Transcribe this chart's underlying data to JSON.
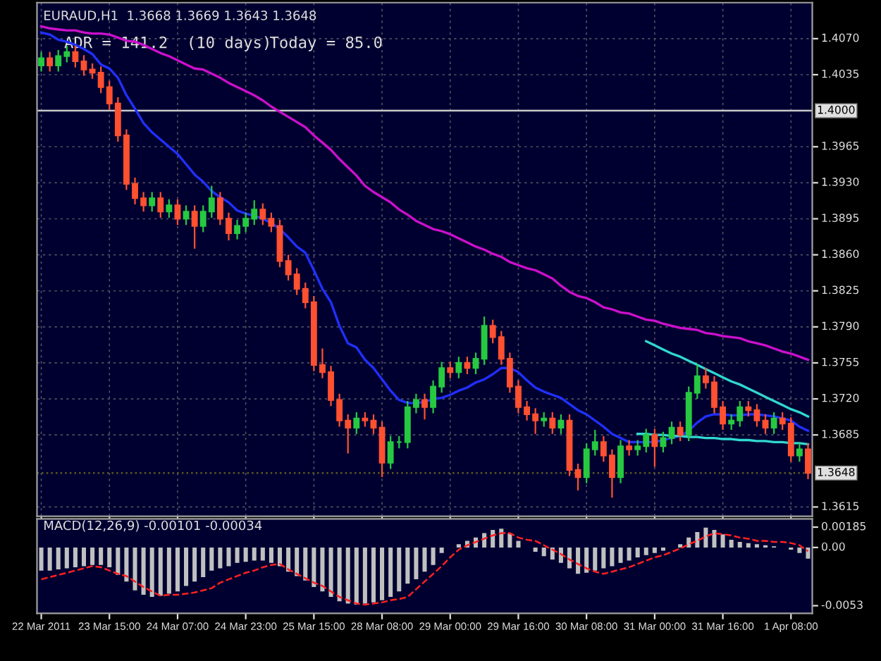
{
  "chart_data": [
    {
      "type": "candlestick",
      "title": "EURAUD,H1  1.3668 1.3669 1.3643 1.3648",
      "annotations": [
        "ADR = 141.2  (10 days)",
        "Today = 85.0"
      ],
      "categories": [
        null,
        null,
        null,
        null,
        null,
        null,
        null,
        null,
        null,
        null,
        null,
        null,
        null,
        null,
        null,
        null,
        null,
        null,
        null,
        null,
        null,
        null,
        null,
        null,
        null,
        null,
        null,
        null,
        null,
        null,
        null,
        null,
        null,
        null,
        null,
        null,
        null,
        null,
        null,
        null,
        null,
        null,
        null,
        null,
        null,
        null,
        null,
        null,
        null,
        null,
        null,
        null,
        null,
        null,
        null,
        null,
        null,
        null,
        null,
        null,
        null,
        null,
        null,
        null,
        null,
        null,
        null,
        null,
        null,
        null,
        null,
        null,
        null,
        null,
        null,
        null,
        null,
        null,
        null,
        null,
        null,
        null,
        null,
        null,
        null,
        null,
        null,
        null,
        null,
        null,
        null
      ],
      "ohlc": [
        [
          1.4044,
          1.4057,
          1.4038,
          1.4051
        ],
        [
          1.4051,
          1.4057,
          1.4038,
          1.4044
        ],
        [
          1.4044,
          1.4059,
          1.4038,
          1.4053
        ],
        [
          1.4053,
          1.4063,
          1.4047,
          1.4057
        ],
        [
          1.4057,
          1.4063,
          1.4042,
          1.4048
        ],
        [
          1.4048,
          1.4054,
          1.4034,
          1.404
        ],
        [
          1.404,
          1.4046,
          1.4031,
          1.4037
        ],
        [
          1.4037,
          1.4043,
          1.4017,
          1.4023
        ],
        [
          1.4023,
          1.4029,
          1.4001,
          1.4007
        ],
        [
          1.4007,
          1.4013,
          1.397,
          1.3976
        ],
        [
          1.3976,
          1.3982,
          1.3923,
          1.3929
        ],
        [
          1.3929,
          1.3935,
          1.3909,
          1.3915
        ],
        [
          1.3915,
          1.3921,
          1.3902,
          1.3908
        ],
        [
          1.3908,
          1.3921,
          1.3902,
          1.3915
        ],
        [
          1.3915,
          1.3921,
          1.3896,
          1.3902
        ],
        [
          1.3902,
          1.3914,
          1.3896,
          1.3908
        ],
        [
          1.3908,
          1.3914,
          1.3889,
          1.3895
        ],
        [
          1.3895,
          1.3908,
          1.3889,
          1.3902
        ],
        [
          1.3902,
          1.3908,
          1.3866,
          1.3888
        ],
        [
          1.3888,
          1.3908,
          1.3882,
          1.3902
        ],
        [
          1.3902,
          1.3927,
          1.3896,
          1.3915
        ],
        [
          1.3915,
          1.3921,
          1.3889,
          1.3895
        ],
        [
          1.3895,
          1.3901,
          1.3874,
          1.3881
        ],
        [
          1.3881,
          1.3894,
          1.3875,
          1.3888
        ],
        [
          1.3888,
          1.3901,
          1.3882,
          1.3895
        ],
        [
          1.3895,
          1.3913,
          1.3889,
          1.3904
        ],
        [
          1.3904,
          1.391,
          1.3889,
          1.3895
        ],
        [
          1.3895,
          1.3901,
          1.3882,
          1.3888
        ],
        [
          1.3888,
          1.3894,
          1.3848,
          1.3854
        ],
        [
          1.3854,
          1.386,
          1.3835,
          1.3841
        ],
        [
          1.3841,
          1.3847,
          1.3821,
          1.3827
        ],
        [
          1.3827,
          1.3833,
          1.3808,
          1.3814
        ],
        [
          1.3814,
          1.382,
          1.3747,
          1.3753
        ],
        [
          1.3753,
          1.3769,
          1.374,
          1.3746
        ],
        [
          1.3746,
          1.3752,
          1.3713,
          1.3719
        ],
        [
          1.3719,
          1.3725,
          1.3693,
          1.3699
        ],
        [
          1.3699,
          1.3705,
          1.3667,
          1.3692
        ],
        [
          1.3692,
          1.3707,
          1.3686,
          1.3701
        ],
        [
          1.3701,
          1.3707,
          1.3693,
          1.3699
        ],
        [
          1.3699,
          1.3705,
          1.3686,
          1.3692
        ],
        [
          1.3692,
          1.3698,
          1.3644,
          1.3658
        ],
        [
          1.3658,
          1.3684,
          1.3652,
          1.3678
        ],
        [
          1.3678,
          1.3684,
          1.3672,
          1.3678
        ],
        [
          1.3678,
          1.3718,
          1.3672,
          1.3712
        ],
        [
          1.3712,
          1.3725,
          1.3706,
          1.3719
        ],
        [
          1.3719,
          1.3725,
          1.37,
          1.3712
        ],
        [
          1.3712,
          1.3738,
          1.3706,
          1.3732
        ],
        [
          1.3732,
          1.3756,
          1.3726,
          1.375
        ],
        [
          1.375,
          1.3756,
          1.374,
          1.3746
        ],
        [
          1.3746,
          1.3761,
          1.374,
          1.3755
        ],
        [
          1.3755,
          1.3761,
          1.3744,
          1.375
        ],
        [
          1.375,
          1.3765,
          1.3744,
          1.3759
        ],
        [
          1.3759,
          1.38,
          1.3753,
          1.3791
        ],
        [
          1.3791,
          1.3797,
          1.3774,
          1.378
        ],
        [
          1.378,
          1.3786,
          1.3753,
          1.3759
        ],
        [
          1.3759,
          1.3765,
          1.3726,
          1.3732
        ],
        [
          1.3732,
          1.3738,
          1.3706,
          1.3712
        ],
        [
          1.3712,
          1.3718,
          1.3699,
          1.3705
        ],
        [
          1.3705,
          1.3711,
          1.3686,
          1.3699
        ],
        [
          1.3699,
          1.3707,
          1.3693,
          1.3701
        ],
        [
          1.3701,
          1.3707,
          1.3686,
          1.3692
        ],
        [
          1.3692,
          1.3705,
          1.3686,
          1.3699
        ],
        [
          1.3699,
          1.3705,
          1.3645,
          1.3651
        ],
        [
          1.3651,
          1.3657,
          1.3631,
          1.3644
        ],
        [
          1.3644,
          1.3677,
          1.3638,
          1.3671
        ],
        [
          1.3671,
          1.369,
          1.3665,
          1.3678
        ],
        [
          1.3678,
          1.3684,
          1.3659,
          1.3665
        ],
        [
          1.3665,
          1.3671,
          1.3624,
          1.3644
        ],
        [
          1.3644,
          1.368,
          1.3638,
          1.3674
        ],
        [
          1.3674,
          1.368,
          1.3665,
          1.3671
        ],
        [
          1.3671,
          1.368,
          1.3665,
          1.3674
        ],
        [
          1.3674,
          1.3691,
          1.3668,
          1.3685
        ],
        [
          1.3685,
          1.3691,
          1.3654,
          1.3674
        ],
        [
          1.3674,
          1.3688,
          1.3668,
          1.3682
        ],
        [
          1.3682,
          1.3698,
          1.3676,
          1.3692
        ],
        [
          1.3692,
          1.3698,
          1.3679,
          1.3685
        ],
        [
          1.3685,
          1.3732,
          1.3679,
          1.3726
        ],
        [
          1.3726,
          1.3753,
          1.372,
          1.3742
        ],
        [
          1.3742,
          1.375,
          1.373,
          1.3736
        ],
        [
          1.3736,
          1.3742,
          1.3706,
          1.3712
        ],
        [
          1.3712,
          1.3718,
          1.369,
          1.3696
        ],
        [
          1.3696,
          1.3705,
          1.369,
          1.3699
        ],
        [
          1.3699,
          1.3718,
          1.3693,
          1.3712
        ],
        [
          1.3712,
          1.3718,
          1.3703,
          1.3709
        ],
        [
          1.3709,
          1.3715,
          1.3693,
          1.3699
        ],
        [
          1.3699,
          1.3705,
          1.3686,
          1.3692
        ],
        [
          1.3692,
          1.3707,
          1.3686,
          1.3701
        ],
        [
          1.3701,
          1.3707,
          1.369,
          1.3696
        ],
        [
          1.3696,
          1.3702,
          1.3659,
          1.3665
        ],
        [
          1.3665,
          1.3677,
          1.3659,
          1.3671
        ],
        [
          1.3671,
          1.3677,
          1.3642,
          1.3648
        ]
      ],
      "colors": [
        "#26c940",
        "#ff5030",
        "#26c940",
        "#26c940",
        "#ff5030",
        "#ff5030",
        "#ff5030",
        "#ff5030",
        "#ff5030",
        "#ff5030",
        "#ff5030",
        "#ff5030",
        "#ff5030",
        "#26c940",
        "#ff5030",
        "#26c940",
        "#ff5030",
        "#26c940",
        "#ff5030",
        "#26c940",
        "#26c940",
        "#ff5030",
        "#ff5030",
        "#26c940",
        "#26c940",
        "#26c940",
        "#ff5030",
        "#ff5030",
        "#ff5030",
        "#ff5030",
        "#ff5030",
        "#ff5030",
        "#ff5030",
        "#ff5030",
        "#ff5030",
        "#ff5030",
        "#ff5030",
        "#26c940",
        "#ff5030",
        "#ff5030",
        "#ff5030",
        "#26c940",
        "#26c940",
        "#26c940",
        "#26c940",
        "#ff5030",
        "#26c940",
        "#26c940",
        "#ff5030",
        "#26c940",
        "#ff5030",
        "#26c940",
        "#26c940",
        "#ff5030",
        "#ff5030",
        "#ff5030",
        "#ff5030",
        "#ff5030",
        "#ff5030",
        "#26c940",
        "#ff5030",
        "#26c940",
        "#ff5030",
        "#ff5030",
        "#26c940",
        "#26c940",
        "#ff5030",
        "#ff5030",
        "#26c940",
        "#ff5030",
        "#26c940",
        "#26c940",
        "#ff5030",
        "#26c940",
        "#26c940",
        "#ff5030",
        "#26c940",
        "#26c940",
        "#ff5030",
        "#ff5030",
        "#ff5030",
        "#26c940",
        "#26c940",
        "#ff5030",
        "#ff5030",
        "#ff5030",
        "#26c940",
        "#ff5030",
        "#ff5030",
        "#26c940",
        "#ff5030"
      ],
      "series": [
        {
          "type": "line",
          "color": "#2030ff",
          "values": [
            1.4076,
            1.4074,
            1.4069,
            1.4067,
            1.4064,
            1.406,
            1.4055,
            1.4045,
            1.4041,
            1.4032,
            1.4015,
            1.4002,
            1.3988,
            1.3979,
            1.3972,
            1.3965,
            1.3958,
            1.3948,
            1.3938,
            1.3931,
            1.3922,
            1.3916,
            1.3911,
            1.3903,
            1.39,
            1.3898,
            1.3895,
            1.3891,
            1.3885,
            1.3877,
            1.3868,
            1.3862,
            1.3845,
            1.3827,
            1.3814,
            1.3791,
            1.3774,
            1.377,
            1.3758,
            1.375,
            1.3739,
            1.3728,
            1.3719,
            1.3716,
            1.3716,
            1.3717,
            1.372,
            1.3721,
            1.3724,
            1.3728,
            1.3731,
            1.3736,
            1.3739,
            1.3744,
            1.375,
            1.375,
            1.3746,
            1.3738,
            1.3731,
            1.3727,
            1.3724,
            1.3721,
            1.3715,
            1.3709,
            1.3705,
            1.3699,
            1.3693,
            1.3686,
            1.3682,
            1.3678,
            1.3678,
            1.3678,
            1.3678,
            1.368,
            1.3682,
            1.3684,
            1.3689,
            1.3697,
            1.3703,
            1.3705,
            1.3705,
            1.3704,
            1.3704,
            1.3705,
            1.3705,
            1.3704,
            1.3703,
            1.3701,
            1.3699,
            1.3693,
            1.3689
          ]
        },
        {
          "type": "line",
          "color": "#cc10cc",
          "values": [
            1.4082,
            1.408,
            1.4079,
            1.4078,
            1.4078,
            1.4076,
            1.4075,
            1.4075,
            1.4074,
            1.4071,
            1.4068,
            1.4067,
            1.4064,
            1.406,
            1.4056,
            1.4053,
            1.4049,
            1.4045,
            1.4041,
            1.404,
            1.4036,
            1.4032,
            1.4027,
            1.4023,
            1.4019,
            1.4015,
            1.401,
            1.4004,
            1.3999,
            1.3994,
            1.3989,
            1.3984,
            1.3976,
            1.3969,
            1.3962,
            1.3953,
            1.3945,
            1.3937,
            1.3927,
            1.3921,
            1.3916,
            1.3911,
            1.3904,
            1.3899,
            1.3893,
            1.3889,
            1.3885,
            1.3883,
            1.388,
            1.3876,
            1.3872,
            1.3868,
            1.3865,
            1.3861,
            1.3858,
            1.3853,
            1.385,
            1.3847,
            1.3845,
            1.3841,
            1.3837,
            1.383,
            1.3824,
            1.382,
            1.3818,
            1.3814,
            1.3809,
            1.3807,
            1.3804,
            1.3803,
            1.38,
            1.3797,
            1.3796,
            1.3793,
            1.3791,
            1.3789,
            1.3788,
            1.3787,
            1.3784,
            1.3783,
            1.3781,
            1.378,
            1.3779,
            1.3776,
            1.3774,
            1.3772,
            1.3769,
            1.3766,
            1.3764,
            1.3761,
            1.3758
          ]
        },
        {
          "type": "line",
          "color": "#30d8d0",
          "values": [
            null,
            null,
            null,
            null,
            null,
            null,
            null,
            null,
            null,
            null,
            null,
            null,
            null,
            null,
            null,
            null,
            null,
            null,
            null,
            null,
            null,
            null,
            null,
            null,
            null,
            null,
            null,
            null,
            null,
            null,
            null,
            null,
            null,
            null,
            null,
            null,
            null,
            null,
            null,
            null,
            null,
            null,
            null,
            null,
            null,
            null,
            null,
            null,
            null,
            null,
            null,
            null,
            null,
            null,
            null,
            null,
            null,
            null,
            null,
            null,
            null,
            null,
            null,
            null,
            null,
            null,
            null,
            null,
            null,
            null,
            null,
            1.3776,
            1.3772,
            1.3768,
            1.3764,
            1.3761,
            1.3757,
            1.3753,
            1.3749,
            1.3745,
            1.3741,
            1.3737,
            1.3734,
            1.373,
            1.3726,
            1.3722,
            1.3718,
            1.3714,
            1.371,
            1.3707,
            1.3703
          ]
        },
        {
          "type": "line",
          "color": "#30d8d0",
          "values": [
            null,
            null,
            null,
            null,
            null,
            null,
            null,
            null,
            null,
            null,
            null,
            null,
            null,
            null,
            null,
            null,
            null,
            null,
            null,
            null,
            null,
            null,
            null,
            null,
            null,
            null,
            null,
            null,
            null,
            null,
            null,
            null,
            null,
            null,
            null,
            null,
            null,
            null,
            null,
            null,
            null,
            null,
            null,
            null,
            null,
            null,
            null,
            null,
            null,
            null,
            null,
            null,
            null,
            null,
            null,
            null,
            null,
            null,
            null,
            null,
            null,
            null,
            null,
            null,
            null,
            null,
            null,
            null,
            null,
            null,
            1.3686,
            1.3686,
            1.3685,
            1.3685,
            1.3684,
            1.3684,
            1.3683,
            1.3683,
            1.3682,
            1.3682,
            1.3681,
            1.3681,
            1.368,
            1.368,
            1.3679,
            1.3679,
            1.3678,
            1.3678,
            1.3677,
            1.3677,
            1.3676
          ]
        }
      ],
      "ylim": [
        1.3606,
        1.4105
      ],
      "yticks": [
        {
          "value": 1.407,
          "label": "1.4070"
        },
        {
          "value": 1.4035,
          "label": "1.4035"
        },
        {
          "value": 1.3965,
          "label": "1.3965"
        },
        {
          "value": 1.393,
          "label": "1.3930"
        },
        {
          "value": 1.3895,
          "label": "1.3895"
        },
        {
          "value": 1.386,
          "label": "1.3860"
        },
        {
          "value": 1.3825,
          "label": "1.3825"
        },
        {
          "value": 1.379,
          "label": "1.3790"
        },
        {
          "value": 1.3755,
          "label": "1.3755"
        },
        {
          "value": 1.372,
          "label": "1.3720"
        },
        {
          "value": 1.3685,
          "label": "1.3685"
        },
        {
          "value": 1.3615,
          "label": "1.3615"
        }
      ],
      "ref_lines": [
        {
          "axis": "y",
          "value": 1.4,
          "label": "1.4000",
          "color": "#c8c8c8",
          "line_style": "solid"
        },
        {
          "axis": "y",
          "value": 1.3648,
          "label": "1.3648",
          "color": "#5a5a20",
          "line_style": "dotted"
        }
      ],
      "grid": true
    },
    {
      "type": "bar",
      "title": "MACD(12,26,9) -0.00101 -0.00034",
      "categories": [
        "22 Mar 2011",
        null,
        null,
        null,
        null,
        null,
        null,
        null,
        "23 Mar 15:00",
        null,
        null,
        null,
        null,
        null,
        null,
        null,
        "24 Mar 07:00",
        null,
        null,
        null,
        null,
        null,
        null,
        null,
        "24 Mar 23:00",
        null,
        null,
        null,
        null,
        null,
        null,
        null,
        "25 Mar 15:00",
        null,
        null,
        null,
        null,
        null,
        null,
        null,
        "28 Mar 08:00",
        null,
        null,
        null,
        null,
        null,
        null,
        null,
        "29 Mar 00:00",
        null,
        null,
        null,
        null,
        null,
        null,
        null,
        "29 Mar 16:00",
        null,
        null,
        null,
        null,
        null,
        null,
        null,
        "30 Mar 08:00",
        null,
        null,
        null,
        null,
        null,
        null,
        null,
        "31 Mar 00:00",
        null,
        null,
        null,
        null,
        null,
        null,
        null,
        "31 Mar 16:00",
        null,
        null,
        null,
        null,
        null,
        null,
        null,
        "1 Apr 08:00",
        null,
        null
      ],
      "series": [
        {
          "type": "bar",
          "color": "#c0c0c0",
          "values": [
            -0.0021,
            -0.0021,
            -0.002,
            -0.0019,
            -0.0018,
            -0.0017,
            -0.0016,
            -0.0016,
            -0.0018,
            -0.0025,
            -0.0031,
            -0.0039,
            -0.0043,
            -0.0045,
            -0.0044,
            -0.0042,
            -0.004,
            -0.0035,
            -0.0031,
            -0.0027,
            -0.0021,
            -0.0019,
            -0.0017,
            -0.0014,
            -0.0013,
            -0.0012,
            -0.0012,
            -0.0014,
            -0.0017,
            -0.0022,
            -0.0026,
            -0.003,
            -0.0036,
            -0.004,
            -0.0045,
            -0.0049,
            -0.0051,
            -0.0052,
            -0.0051,
            -0.005,
            -0.0048,
            -0.0045,
            -0.004,
            -0.0033,
            -0.0029,
            -0.0022,
            -0.0016,
            -0.0005,
            0.0,
            0.0003,
            0.0006,
            0.0009,
            0.0013,
            0.0016,
            0.0017,
            0.0013,
            0.0006,
            0.0,
            -0.0004,
            -0.0008,
            -0.0011,
            -0.0014,
            -0.0019,
            -0.0024,
            -0.0023,
            -0.0021,
            -0.0019,
            -0.0017,
            -0.0014,
            -0.0012,
            -0.0009,
            -0.0007,
            -0.0005,
            -0.0003,
            0.0,
            0.0003,
            0.0009,
            0.0014,
            0.0018,
            0.0016,
            0.0012,
            0.0007,
            0.0005,
            0.0004,
            0.0003,
            0.0002,
            0.0001,
            0.0,
            -0.0002,
            -0.0005,
            -0.00101
          ]
        },
        {
          "type": "line",
          "color": "#ff2020",
          "line_style": "dashed",
          "values": [
            -0.0029,
            -0.0027,
            -0.0025,
            -0.0023,
            -0.0021,
            -0.0019,
            -0.0017,
            -0.0018,
            -0.0021,
            -0.0024,
            -0.0026,
            -0.0031,
            -0.0036,
            -0.004,
            -0.0044,
            -0.0043,
            -0.0043,
            -0.0042,
            -0.0041,
            -0.0039,
            -0.0037,
            -0.0032,
            -0.0029,
            -0.0026,
            -0.0023,
            -0.0021,
            -0.0018,
            -0.0016,
            -0.0015,
            -0.002,
            -0.0024,
            -0.0028,
            -0.0032,
            -0.0035,
            -0.004,
            -0.0045,
            -0.0048,
            -0.0051,
            -0.0052,
            -0.0051,
            -0.005,
            -0.0048,
            -0.0047,
            -0.0045,
            -0.0038,
            -0.0031,
            -0.0024,
            -0.0017,
            -0.0009,
            -0.0002,
            0.0002,
            0.0005,
            0.0008,
            0.0011,
            0.0013,
            0.0013,
            0.0009,
            0.0007,
            0.0006,
            0.0002,
            -0.0002,
            -0.0006,
            -0.0011,
            -0.0015,
            -0.0019,
            -0.0022,
            -0.0024,
            -0.0022,
            -0.002,
            -0.0018,
            -0.0015,
            -0.0012,
            -0.0009,
            -0.0007,
            -0.0004,
            -0.0001,
            0.0003,
            0.0006,
            0.001,
            0.0013,
            0.0012,
            0.0011,
            0.0009,
            0.0008,
            0.0006,
            0.0006,
            0.0005,
            0.0005,
            0.0004,
            0.0002,
            -0.00034
          ]
        }
      ],
      "ylim": [
        -0.006,
        0.0026
      ],
      "yticks": [
        {
          "value": 0.00185,
          "label": "0.00185"
        },
        {
          "value": 0,
          "label": "0.00"
        },
        {
          "value": -0.0053,
          "label": "-0.0053"
        }
      ],
      "grid": false
    }
  ]
}
